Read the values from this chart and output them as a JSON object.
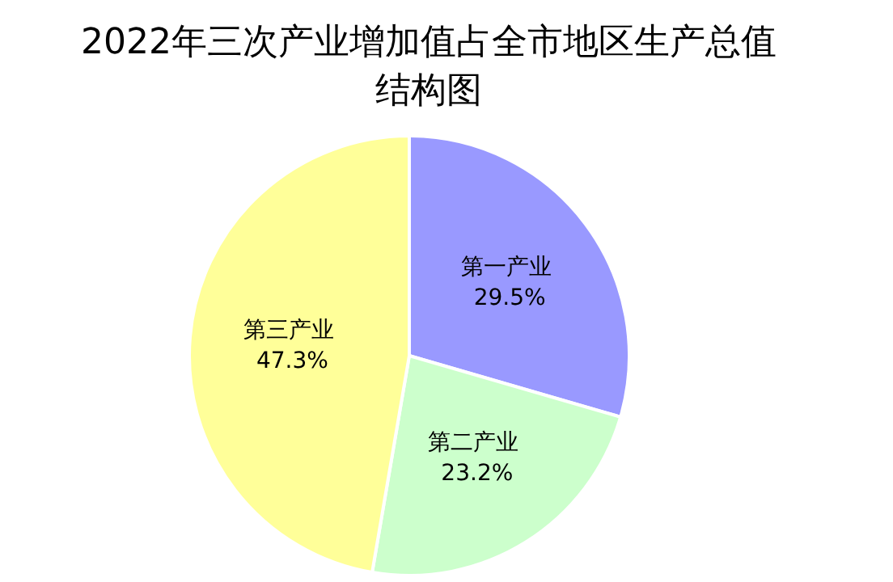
{
  "chart_data": {
    "type": "pie",
    "title": "2022年三次产业增加值占全市地区生产总值结构图",
    "categories": [
      "第一产业",
      "第二产业",
      "第三产业"
    ],
    "values": [
      29.5,
      23.2,
      47.3
    ],
    "colors": [
      "#9999ff",
      "#ccffcc",
      "#ffff99"
    ],
    "value_labels": [
      "29.5%",
      "23.2%",
      "47.3%"
    ],
    "legend": false
  }
}
